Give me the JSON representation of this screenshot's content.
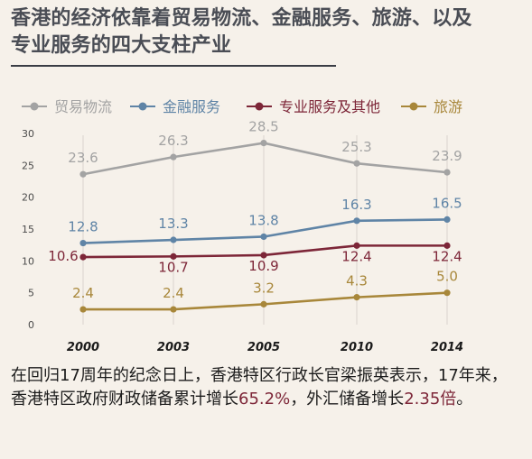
{
  "title_lines": [
    "香港的经济依靠着贸易物流、金融服务、旅游、以及",
    "专业服务的四大支柱产业"
  ],
  "chart_data": {
    "type": "line",
    "categories": [
      "2000",
      "2003",
      "2005",
      "2010",
      "2014"
    ],
    "ylim": [
      0,
      30
    ],
    "yticks": [
      0,
      5,
      10,
      15,
      20,
      25,
      30
    ],
    "grid": "vertical",
    "legend_position": "top",
    "series": [
      {
        "name": "贸易物流",
        "color": "#a3a3a3",
        "values": [
          23.6,
          26.3,
          28.5,
          25.3,
          23.9
        ]
      },
      {
        "name": "金融服务",
        "color": "#5f84a6",
        "values": [
          12.8,
          13.3,
          13.8,
          16.3,
          16.5
        ]
      },
      {
        "name": "专业服务及其他",
        "color": "#7d2638",
        "values": [
          10.6,
          10.7,
          10.9,
          12.4,
          12.4
        ]
      },
      {
        "name": "旅游",
        "color": "#a8873a",
        "values": [
          2.4,
          2.4,
          3.2,
          4.3,
          5.0
        ]
      }
    ]
  },
  "caption": {
    "part1": "在回归17周年的纪念日上，香港特区行政长官梁振英表示，17年来，香港特区政府财政储备累计增长",
    "highlight1": "65.2%",
    "part2": "，外汇储备增长",
    "highlight2": "2.35倍",
    "part3": "。"
  }
}
